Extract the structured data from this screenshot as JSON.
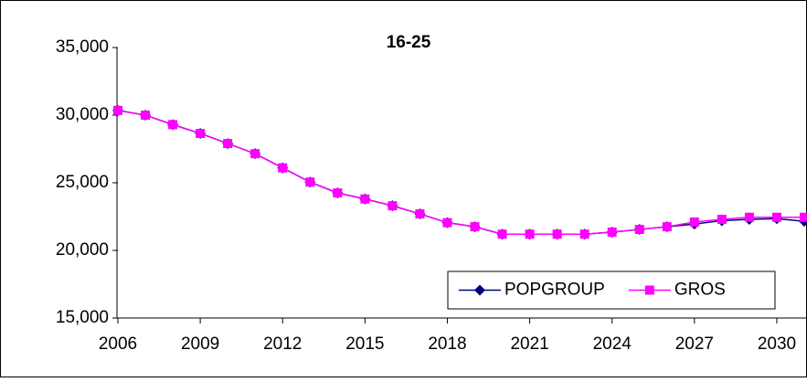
{
  "chart_data": {
    "type": "line",
    "title": "16-25",
    "x": [
      2006,
      2007,
      2008,
      2009,
      2010,
      2011,
      2012,
      2013,
      2014,
      2015,
      2016,
      2017,
      2018,
      2019,
      2020,
      2021,
      2022,
      2023,
      2024,
      2025,
      2026,
      2027,
      2028,
      2029,
      2030,
      2031
    ],
    "series": [
      {
        "name": "POPGROUP",
        "color": "#000080",
        "marker": "diamond",
        "values": [
          30350,
          30000,
          29300,
          28650,
          27900,
          27150,
          26100,
          25050,
          24250,
          23800,
          23300,
          22700,
          22050,
          21750,
          21200,
          21200,
          21200,
          21200,
          21350,
          21550,
          21750,
          21950,
          22200,
          22300,
          22350,
          22150
        ]
      },
      {
        "name": "GROS",
        "color": "#ff00ff",
        "marker": "square",
        "values": [
          30350,
          30000,
          29300,
          28650,
          27900,
          27150,
          26100,
          25050,
          24250,
          23800,
          23300,
          22700,
          22050,
          21750,
          21200,
          21200,
          21200,
          21200,
          21350,
          21550,
          21750,
          22100,
          22300,
          22450,
          22450,
          22450
        ]
      }
    ],
    "xlim": [
      2006,
      2031.1
    ],
    "xticks": [
      2006,
      2009,
      2012,
      2015,
      2018,
      2021,
      2024,
      2027,
      2030
    ],
    "ylim": [
      15000,
      35000
    ],
    "yticks": [
      {
        "value": 15000,
        "label": "15,000"
      },
      {
        "value": 20000,
        "label": "20,000"
      },
      {
        "value": 25000,
        "label": "25,000"
      },
      {
        "value": 30000,
        "label": "30,000"
      },
      {
        "value": 35000,
        "label": "35,000"
      }
    ],
    "grid": false,
    "legend": "lower right"
  }
}
